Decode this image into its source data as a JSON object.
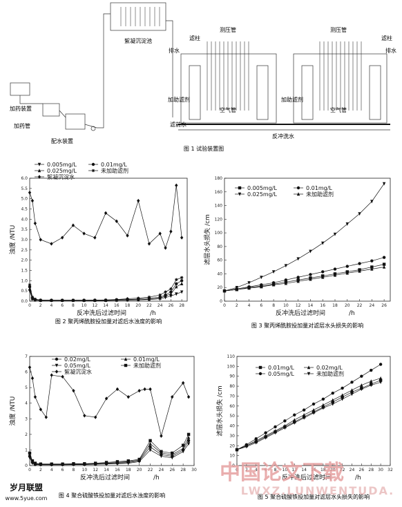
{
  "fig1": {
    "labels": {
      "sedimentation_tank": "絮凝沉淀池",
      "pressure_tube_1": "测压管",
      "pressure_tube_2": "测压管",
      "filter_column_1": "滤柱",
      "filter_column_2": "滤柱",
      "drain_1": "排水",
      "drain_2": "排水",
      "aid_1": "加助滤剂",
      "aid_2": "加助滤剂",
      "air_pipe_1": "空气管",
      "air_pipe_2": "空气管",
      "raw_water": "滤前水",
      "backwash": "反冲洗水",
      "dosing_device": "加药装置",
      "dosing_pipe": "加药管",
      "water_distribution": "配水装置"
    },
    "caption": "图 1   试验装置图"
  },
  "chart_data": [
    {
      "id": "fig2",
      "type": "line",
      "caption": "图 2   聚丙烯酰胺投加量对滤后水浊度的影响",
      "xlabel": "反冲洗后过滤时间",
      "xunit": "/h",
      "ylabel": "浊度 /NTU",
      "xlim": [
        0,
        29
      ],
      "ylim": [
        0,
        6.0
      ],
      "xticks": [
        "0",
        "2",
        "4",
        "6",
        "8",
        "10",
        "12",
        "14",
        "16",
        "18",
        "20",
        "22",
        "24",
        "26",
        "28"
      ],
      "yticks": [
        "0.0",
        "0.5",
        "1.0",
        "1.5",
        "2.0",
        "2.5",
        "3.0",
        "3.5",
        "4.0",
        "4.5",
        "5.0",
        "5.5",
        "6.0"
      ],
      "legend": [
        "0.005mg/L",
        "0.01mg/L",
        "0.025mg/L",
        "未加助滤剂",
        "絮凝沉淀水"
      ],
      "series": [
        {
          "name": "絮凝沉淀水",
          "marker": "diamond",
          "x": [
            0,
            0.5,
            1,
            2,
            4,
            6,
            8,
            10,
            12,
            14,
            16,
            18,
            20,
            22,
            24,
            25,
            26,
            27,
            28
          ],
          "y": [
            5.3,
            4.9,
            3.8,
            3.0,
            2.8,
            3.1,
            3.7,
            3.3,
            3.1,
            4.3,
            3.9,
            3.2,
            4.9,
            2.8,
            3.3,
            2.6,
            3.4,
            5.65,
            3.1
          ]
        },
        {
          "name": "未加助滤剂",
          "marker": "star",
          "x": [
            0,
            0.5,
            1,
            2,
            4,
            6,
            8,
            10,
            12,
            14,
            16,
            18,
            20,
            22,
            24,
            25,
            26,
            27,
            28
          ],
          "y": [
            0.8,
            0.2,
            0.1,
            0.05,
            0.05,
            0.05,
            0.05,
            0.05,
            0.05,
            0.06,
            0.08,
            0.12,
            0.15,
            0.2,
            0.3,
            0.45,
            0.6,
            1.05,
            1.15
          ]
        },
        {
          "name": "0.01mg/L",
          "marker": "circle",
          "x": [
            0,
            0.5,
            1,
            2,
            4,
            6,
            8,
            10,
            12,
            14,
            16,
            18,
            20,
            22,
            24,
            25,
            26,
            27,
            28
          ],
          "y": [
            0.7,
            0.15,
            0.08,
            0.05,
            0.04,
            0.04,
            0.04,
            0.04,
            0.05,
            0.05,
            0.06,
            0.08,
            0.1,
            0.15,
            0.2,
            0.3,
            0.45,
            0.85,
            1.0
          ]
        },
        {
          "name": "0.025mg/L",
          "marker": "triangle",
          "x": [
            0,
            0.5,
            1,
            2,
            4,
            6,
            8,
            10,
            12,
            14,
            16,
            18,
            20,
            22,
            24,
            25,
            26,
            27,
            28
          ],
          "y": [
            0.6,
            0.12,
            0.06,
            0.04,
            0.04,
            0.04,
            0.04,
            0.04,
            0.04,
            0.04,
            0.05,
            0.06,
            0.07,
            0.1,
            0.15,
            0.25,
            0.35,
            0.7,
            0.85
          ]
        },
        {
          "name": "0.005mg/L",
          "marker": "triangle-down",
          "x": [
            0,
            0.5,
            1,
            2,
            4,
            6,
            8,
            10,
            12,
            14,
            16,
            18,
            20,
            22,
            24,
            25,
            26,
            27,
            28
          ],
          "y": [
            0.5,
            0.1,
            0.05,
            0.03,
            0.03,
            0.03,
            0.03,
            0.03,
            0.03,
            0.03,
            0.04,
            0.05,
            0.06,
            0.08,
            0.12,
            0.18,
            0.25,
            0.35,
            0.45
          ]
        }
      ]
    },
    {
      "id": "fig3",
      "type": "line",
      "caption": "图 3   聚丙烯酰胺投加量对滤层水头损失的影响",
      "xlabel": "反冲洗后过滤时间",
      "xunit": "/h",
      "ylabel": "滤层水头损失 /cm",
      "xlim": [
        0,
        27
      ],
      "ylim": [
        0,
        180
      ],
      "xticks": [
        "0",
        "2",
        "4",
        "6",
        "8",
        "10",
        "12",
        "14",
        "16",
        "18",
        "20",
        "22",
        "24",
        "26"
      ],
      "yticks": [
        "0",
        "20",
        "40",
        "60",
        "80",
        "100",
        "120",
        "140",
        "160",
        "180"
      ],
      "legend": [
        "0.005mg/L",
        "0.01mg/L",
        "0.025mg/L",
        "未加助滤剂"
      ],
      "series": [
        {
          "name": "0.025mg/L",
          "marker": "triangle-down",
          "x": [
            0,
            2,
            4,
            6,
            8,
            10,
            12,
            14,
            16,
            18,
            20,
            22,
            24,
            26
          ],
          "y": [
            15,
            20,
            27,
            35,
            43,
            52,
            62,
            73,
            85,
            98,
            113,
            128,
            146,
            172
          ]
        },
        {
          "name": "0.01mg/L",
          "marker": "circle",
          "x": [
            0,
            2,
            4,
            6,
            8,
            10,
            12,
            14,
            16,
            18,
            20,
            22,
            24,
            26
          ],
          "y": [
            15,
            18,
            21,
            24,
            27,
            31,
            35,
            39,
            43,
            47,
            51,
            55,
            59,
            64
          ]
        },
        {
          "name": "0.005mg/L",
          "marker": "square",
          "x": [
            0,
            2,
            4,
            6,
            8,
            10,
            12,
            14,
            16,
            18,
            20,
            22,
            24,
            26
          ],
          "y": [
            15,
            17,
            20,
            22,
            25,
            28,
            31,
            34,
            37,
            40,
            43,
            46,
            50,
            54
          ]
        },
        {
          "name": "未加助滤剂",
          "marker": "triangle",
          "x": [
            0,
            2,
            4,
            6,
            8,
            10,
            12,
            14,
            16,
            18,
            20,
            22,
            24,
            26
          ],
          "y": [
            15,
            17,
            19,
            21,
            24,
            26,
            29,
            32,
            35,
            38,
            41,
            44,
            47,
            50
          ]
        }
      ]
    },
    {
      "id": "fig4",
      "type": "line",
      "caption": "图 4   聚合硫酸铁投加量对滤后水浊度的影响",
      "xlabel": "反冲洗后过滤时间",
      "xunit": "/h",
      "ylabel": "浊度 /NTU",
      "xlim": [
        0,
        30
      ],
      "ylim": [
        0,
        7
      ],
      "xticks": [
        "0",
        "2",
        "4",
        "6",
        "8",
        "10",
        "12",
        "14",
        "16",
        "18",
        "20",
        "22",
        "24",
        "26",
        "28",
        "30"
      ],
      "yticks": [
        "0",
        "1",
        "2",
        "3",
        "4",
        "5",
        "6",
        "7"
      ],
      "legend": [
        "0.02mg/L",
        "0.01mg/L",
        "0.05mg/L",
        "未加助滤剂",
        "絮凝沉淀水"
      ],
      "series": [
        {
          "name": "絮凝沉淀水",
          "marker": "diamond",
          "x": [
            0,
            0.5,
            1,
            2,
            3,
            4,
            6,
            8,
            10,
            12,
            14,
            16,
            18,
            20,
            21,
            22,
            24,
            26,
            28,
            29
          ],
          "y": [
            6.3,
            5.6,
            4.4,
            3.6,
            3.1,
            5.8,
            5.7,
            4.8,
            3.2,
            3.1,
            4.3,
            4.9,
            4.4,
            4.8,
            4.9,
            4.9,
            1.9,
            4.4,
            5.3,
            4.4
          ]
        },
        {
          "name": "未加助滤剂",
          "marker": "square",
          "x": [
            0,
            0.5,
            1,
            2,
            4,
            6,
            8,
            10,
            12,
            14,
            16,
            18,
            20,
            22,
            24,
            26,
            28,
            29
          ],
          "y": [
            0.8,
            0.3,
            0.15,
            0.1,
            0.1,
            0.1,
            0.12,
            0.12,
            0.15,
            0.2,
            0.25,
            0.3,
            0.4,
            1.6,
            0.9,
            0.8,
            1.3,
            2.0
          ]
        },
        {
          "name": "0.01mg/L",
          "marker": "triangle",
          "x": [
            0,
            0.5,
            1,
            2,
            4,
            6,
            8,
            10,
            12,
            14,
            16,
            18,
            20,
            22,
            24,
            26,
            28,
            29
          ],
          "y": [
            0.7,
            0.25,
            0.1,
            0.08,
            0.08,
            0.08,
            0.1,
            0.1,
            0.12,
            0.15,
            0.2,
            0.25,
            0.35,
            1.4,
            0.8,
            0.7,
            1.1,
            1.8
          ]
        },
        {
          "name": "0.02mg/L",
          "marker": "circle",
          "x": [
            0,
            0.5,
            1,
            2,
            4,
            6,
            8,
            10,
            12,
            14,
            16,
            18,
            20,
            22,
            24,
            26,
            28,
            29
          ],
          "y": [
            0.6,
            0.2,
            0.08,
            0.06,
            0.06,
            0.06,
            0.08,
            0.08,
            0.1,
            0.12,
            0.15,
            0.2,
            0.3,
            1.2,
            0.7,
            0.6,
            1.0,
            1.6
          ]
        },
        {
          "name": "0.05mg/L",
          "marker": "triangle-down",
          "x": [
            0,
            0.5,
            1,
            2,
            4,
            6,
            8,
            10,
            12,
            14,
            16,
            18,
            20,
            22,
            24,
            26,
            28,
            29
          ],
          "y": [
            0.5,
            0.15,
            0.06,
            0.05,
            0.05,
            0.05,
            0.06,
            0.06,
            0.08,
            0.1,
            0.12,
            0.15,
            0.25,
            1.0,
            0.6,
            0.5,
            0.9,
            1.4
          ]
        }
      ]
    },
    {
      "id": "fig5",
      "type": "line",
      "caption": "图 5   聚合硫酸铁投加量对滤层水头损失的影响",
      "xlabel": "反冲洗后过滤时间",
      "xunit": "/h",
      "ylabel": "滤层水头损失 /cm",
      "xlim": [
        0,
        32
      ],
      "ylim": [
        0,
        110
      ],
      "xticks": [
        "0",
        "2",
        "4",
        "6",
        "8",
        "10",
        "12",
        "14",
        "16",
        "18",
        "20",
        "22",
        "24",
        "26",
        "28",
        "30",
        "32"
      ],
      "yticks": [
        "0",
        "10",
        "20",
        "30",
        "40",
        "50",
        "60",
        "70",
        "80",
        "90",
        "100",
        "110"
      ],
      "legend": [
        "0.01mg/L",
        "0.02mg/L",
        "0.05mg/L",
        "未加助滤剂"
      ],
      "series": [
        {
          "name": "0.05mg/L",
          "marker": "circle",
          "x": [
            0,
            2,
            4,
            6,
            8,
            10,
            12,
            14,
            16,
            18,
            20,
            22,
            24,
            26,
            28,
            30
          ],
          "y": [
            16,
            21,
            27,
            33,
            39,
            45,
            51,
            56,
            62,
            67,
            73,
            78,
            84,
            90,
            96,
            102
          ]
        },
        {
          "name": "0.02mg/L",
          "marker": "triangle",
          "x": [
            0,
            2,
            4,
            6,
            8,
            10,
            12,
            14,
            16,
            18,
            20,
            22,
            24,
            26,
            28,
            30
          ],
          "y": [
            16,
            20,
            25,
            30,
            35,
            40,
            46,
            51,
            56,
            61,
            66,
            71,
            76,
            81,
            85,
            88
          ]
        },
        {
          "name": "0.01mg/L",
          "marker": "square",
          "x": [
            0,
            2,
            4,
            6,
            8,
            10,
            12,
            14,
            16,
            18,
            20,
            22,
            24,
            26,
            28,
            30
          ],
          "y": [
            16,
            20,
            24,
            29,
            34,
            39,
            44,
            49,
            54,
            59,
            64,
            69,
            74,
            78,
            82,
            86
          ]
        },
        {
          "name": "未加助滤剂",
          "marker": "triangle-down",
          "x": [
            0,
            2,
            4,
            6,
            8,
            10,
            12,
            14,
            16,
            18,
            20,
            22,
            24,
            26,
            28,
            30
          ],
          "y": [
            16,
            19,
            23,
            28,
            33,
            38,
            43,
            48,
            53,
            58,
            62,
            67,
            72,
            77,
            81,
            84
          ]
        }
      ]
    }
  ],
  "watermark": {
    "main": "中国论文下载",
    "sub": "LWXZ.LUNWENTUDA.",
    "site": "岁月联盟",
    "site_url": "www.5yue.com"
  }
}
